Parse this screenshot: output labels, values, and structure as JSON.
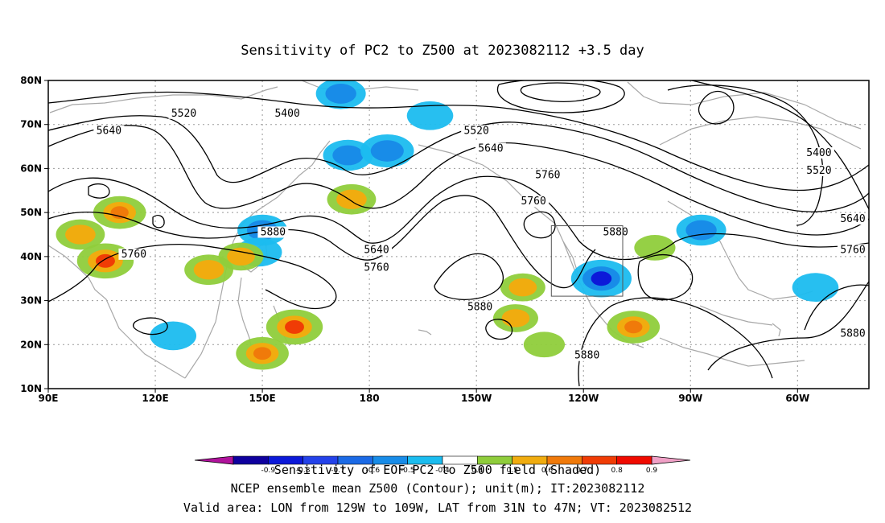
{
  "title": "Sensitivity of PC2 to Z500 at 2023082112 +3.5 day",
  "map": {
    "lon_labels": [
      "90E",
      "120E",
      "150E",
      "180",
      "150W",
      "120W",
      "90W",
      "60W"
    ],
    "lat_labels": [
      "80N",
      "70N",
      "60N",
      "50N",
      "40N",
      "30N",
      "20N",
      "10N"
    ],
    "extent": {
      "lon_min": 90,
      "lon_max": 320,
      "lat_min": 10,
      "lat_max": 80
    },
    "gridlines": "dotted",
    "coastline_color": "#a8a8a8",
    "contour_color": "#000000",
    "contour_labels": [
      {
        "text": "5520",
        "lon": 128,
        "lat": 72
      },
      {
        "text": "5640",
        "lon": 107,
        "lat": 68
      },
      {
        "text": "5400",
        "lon": 157,
        "lat": 72
      },
      {
        "text": "5520",
        "lon": 210,
        "lat": 68
      },
      {
        "text": "5640",
        "lon": 214,
        "lat": 64
      },
      {
        "text": "5760",
        "lon": 230,
        "lat": 58
      },
      {
        "text": "5760",
        "lon": 226,
        "lat": 52
      },
      {
        "text": "5400",
        "lon": 306,
        "lat": 63
      },
      {
        "text": "5520",
        "lon": 306,
        "lat": 59
      },
      {
        "text": "5640",
        "lon": 328,
        "lat": 48
      },
      {
        "text": "5760",
        "lon": 326,
        "lat": 41
      },
      {
        "text": "5880",
        "lon": 153,
        "lat": 45
      },
      {
        "text": "5760",
        "lon": 114,
        "lat": 40
      },
      {
        "text": "5640",
        "lon": 182,
        "lat": 41
      },
      {
        "text": "5760",
        "lon": 182,
        "lat": 37
      },
      {
        "text": "5880",
        "lon": 249,
        "lat": 45
      },
      {
        "text": "5880",
        "lon": 211,
        "lat": 28
      },
      {
        "text": "5880",
        "lon": 318,
        "lat": 22
      },
      {
        "text": "5880",
        "lon": 241,
        "lat": 17
      }
    ],
    "valid_box": {
      "lon_min": 231,
      "lon_max": 251,
      "lat_min": 31,
      "lat_max": 47
    }
  },
  "colorbar": {
    "label_overlap_text": "Sensitivity of EOF PC2 to Z500 field (Shaded)",
    "tick_labels": [
      "-0.9",
      "-0.8",
      "-0.7",
      "-0.6",
      "-0.5",
      "-0.4",
      "0.4",
      "0.5",
      "0.6",
      "0.7",
      "0.8",
      "0.9"
    ],
    "colors": [
      "#0f009e",
      "#0c19d9",
      "#2442ea",
      "#1b6ae6",
      "#188ce8",
      "#1bbcef",
      "#ffffff",
      "#8fcd3b",
      "#f0ac0f",
      "#f07a0a",
      "#f03c05",
      "#f00a00"
    ],
    "under_color": "#b0129c",
    "over_color": "#f0a0c6"
  },
  "footer": {
    "line1": "NCEP ensemble mean Z500 (Contour); unit(m); IT:2023082112",
    "line2": "Valid area: LON from 129W to 109W, LAT from 31N to 47N; VT: 2023082512"
  },
  "chart_data": {
    "type": "heatmap",
    "title": "Sensitivity of PC2 to Z500 at 2023082112 +3.5 day",
    "colorbar_levels": [
      -0.9,
      -0.8,
      -0.7,
      -0.6,
      -0.5,
      -0.4,
      0.4,
      0.5,
      0.6,
      0.7,
      0.8,
      0.9
    ],
    "negative_regions": [
      {
        "lon": 172,
        "lat": 77,
        "value": -0.5
      },
      {
        "lon": 174,
        "lat": 63,
        "value": -0.5
      },
      {
        "lon": 185,
        "lat": 64,
        "value": -0.6
      },
      {
        "lon": 197,
        "lat": 72,
        "value": -0.4
      },
      {
        "lon": 150,
        "lat": 46,
        "value": -0.5
      },
      {
        "lon": 149,
        "lat": 41,
        "value": -0.4
      },
      {
        "lon": 245,
        "lat": 35,
        "value": -0.8
      },
      {
        "lon": 273,
        "lat": 46,
        "value": -0.5
      },
      {
        "lon": 305,
        "lat": 33,
        "value": -0.4
      },
      {
        "lon": 125,
        "lat": 22,
        "value": -0.4
      }
    ],
    "positive_regions": [
      {
        "lon": 106,
        "lat": 39,
        "value": 0.8
      },
      {
        "lon": 99,
        "lat": 45,
        "value": 0.6
      },
      {
        "lon": 110,
        "lat": 50,
        "value": 0.7
      },
      {
        "lon": 135,
        "lat": 37,
        "value": 0.6
      },
      {
        "lon": 144,
        "lat": 40,
        "value": 0.5
      },
      {
        "lon": 150,
        "lat": 18,
        "value": 0.7
      },
      {
        "lon": 159,
        "lat": 24,
        "value": 0.8
      },
      {
        "lon": 175,
        "lat": 53,
        "value": 0.6
      },
      {
        "lon": 223,
        "lat": 33,
        "value": 0.5
      },
      {
        "lon": 221,
        "lat": 26,
        "value": 0.5
      },
      {
        "lon": 254,
        "lat": 24,
        "value": 0.7
      },
      {
        "lon": 260,
        "lat": 42,
        "value": 0.4
      },
      {
        "lon": 229,
        "lat": 20,
        "value": 0.4
      }
    ]
  }
}
